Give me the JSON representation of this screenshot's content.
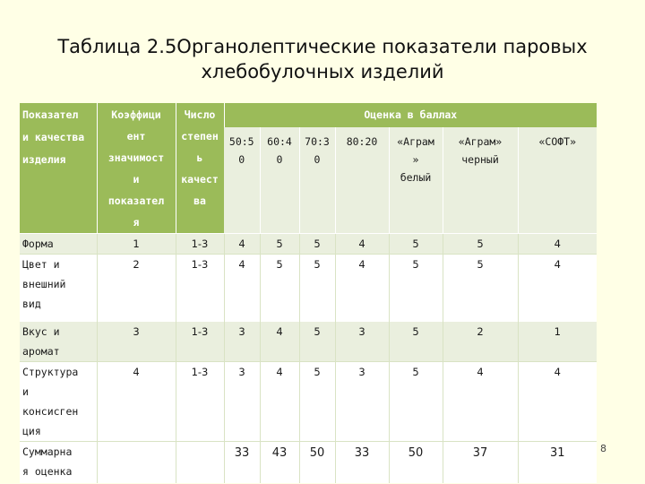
{
  "title": {
    "line1": "Таблица 2.5Органолептические показатели паровых",
    "line2": "хлебобулочных изделий"
  },
  "table": {
    "header": {
      "col1": [
        "Показател",
        "и качества",
        "изделия"
      ],
      "col2": [
        "Коэффици",
        "ент",
        "значимост",
        "и",
        "показател",
        "я"
      ],
      "col3": [
        "Число",
        "степен",
        "ь",
        "качест",
        "ва"
      ],
      "group": "Оценка в баллах",
      "subcols": [
        [
          "50:5",
          "0"
        ],
        [
          "60:4",
          "0"
        ],
        [
          "70:3",
          "0"
        ],
        [
          "80:20"
        ],
        [
          "«Аграм",
          "»",
          "белый"
        ],
        [
          "«Аграм»",
          "черный"
        ],
        [
          "«СОФТ»"
        ]
      ]
    },
    "rows": [
      {
        "label": [
          "Форма"
        ],
        "coef": "1",
        "range": "1-3",
        "values": [
          "4",
          "5",
          "5",
          "4",
          "5",
          "5",
          "4"
        ]
      },
      {
        "label": [
          "Цвет и",
          "внешний",
          "вид"
        ],
        "coef": "2",
        "range": "1-3",
        "values": [
          "4",
          "5",
          "5",
          "4",
          "5",
          "5",
          "4"
        ]
      },
      {
        "label": [
          "Вкус и",
          "аромат"
        ],
        "coef": "3",
        "range": "1-3",
        "values": [
          "3",
          "4",
          "5",
          "3",
          "5",
          "2",
          "1"
        ]
      },
      {
        "label": [
          "Структура",
          "и",
          "консисген",
          "ция"
        ],
        "coef": "4",
        "range": "1-3",
        "values": [
          "3",
          "4",
          "5",
          "3",
          "5",
          "4",
          "4"
        ]
      }
    ],
    "total": {
      "label": [
        "Суммарна",
        "я оценка"
      ],
      "values": [
        "33",
        "43",
        "50",
        "33",
        "50",
        "37",
        "31"
      ]
    }
  },
  "page_number": "8"
}
